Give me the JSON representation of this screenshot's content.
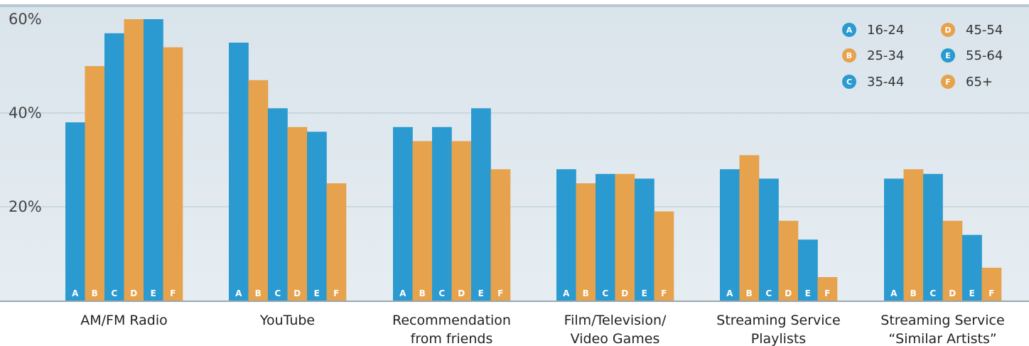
{
  "chart_data": {
    "type": "bar",
    "title": "",
    "xlabel": "",
    "ylabel": "",
    "ylim": [
      0,
      60
    ],
    "yticks": [
      {
        "value": 20,
        "label": "20%"
      },
      {
        "value": 40,
        "label": "40%"
      },
      {
        "value": 60,
        "label": "60%"
      }
    ],
    "grid": true,
    "legend_position": "top-right",
    "categories": [
      [
        "AM/FM Radio"
      ],
      [
        "YouTube"
      ],
      [
        "Recommendation",
        "from friends"
      ],
      [
        "Film/Television/",
        "Video Games"
      ],
      [
        "Streaming Service",
        "Playlists"
      ],
      [
        "Streaming Service",
        "“Similar Artists”"
      ]
    ],
    "series": [
      {
        "letter": "A",
        "name": "16-24",
        "color": "#2a9ad0",
        "values": [
          38,
          55,
          37,
          28,
          28,
          26
        ]
      },
      {
        "letter": "B",
        "name": "25-34",
        "color": "#e6a24c",
        "values": [
          50,
          47,
          34,
          25,
          31,
          28
        ]
      },
      {
        "letter": "C",
        "name": "35-44",
        "color": "#2a9ad0",
        "values": [
          57,
          41,
          37,
          27,
          26,
          27
        ]
      },
      {
        "letter": "D",
        "name": "45-54",
        "color": "#e6a24c",
        "values": [
          60,
          37,
          34,
          27,
          17,
          17
        ]
      },
      {
        "letter": "E",
        "name": "55-64",
        "color": "#2a9ad0",
        "values": [
          60,
          36,
          41,
          26,
          13,
          14
        ]
      },
      {
        "letter": "F",
        "name": "65+",
        "color": "#e6a24c",
        "values": [
          54,
          25,
          28,
          19,
          5,
          7
        ]
      }
    ],
    "colors": {
      "blue": "#2a9ad0",
      "orange": "#e6a24c",
      "plot_background": "#dde7ee",
      "top_rule": "#b7c9d5",
      "baseline": "#9aa7b1"
    }
  }
}
